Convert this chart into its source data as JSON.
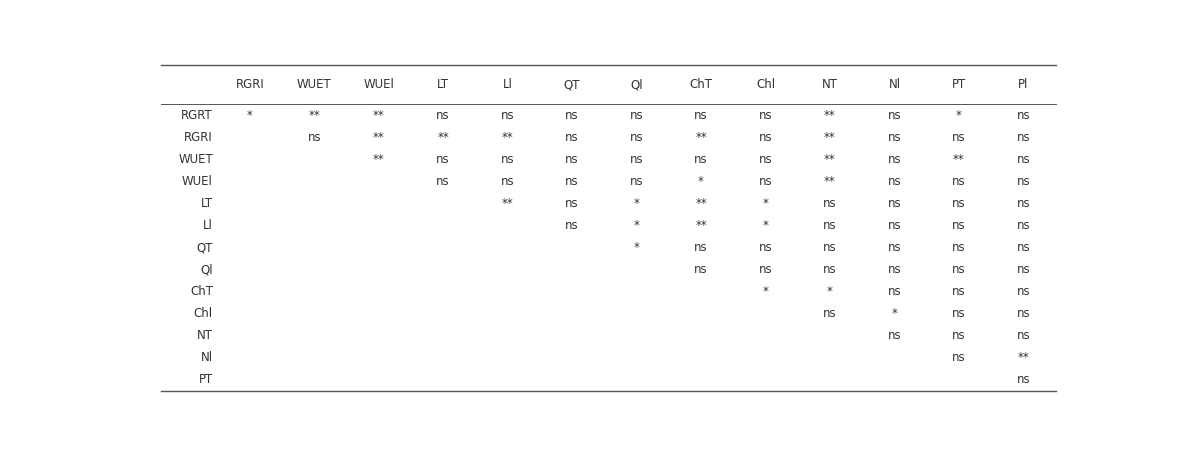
{
  "col_headers": [
    "",
    "RGRI",
    "WUET",
    "WUEl",
    "LT",
    "Ll",
    "QT",
    "Ql",
    "ChT",
    "Chl",
    "NT",
    "Nl",
    "PT",
    "Pl"
  ],
  "row_headers": [
    "RGRT",
    "RGRI",
    "WUET",
    "WUEl",
    "LT",
    "Ll",
    "QT",
    "Ql",
    "ChT",
    "Chl",
    "NT",
    "Nl",
    "PT"
  ],
  "table_data": [
    [
      "RGRT",
      "*",
      "**",
      "**",
      "ns",
      "ns",
      "ns",
      "ns",
      "ns",
      "ns",
      "**",
      "ns",
      "*",
      "ns"
    ],
    [
      "RGRI",
      "",
      "ns",
      "**",
      "**",
      "**",
      "ns",
      "ns",
      "**",
      "ns",
      "**",
      "ns",
      "ns",
      "ns"
    ],
    [
      "WUET",
      "",
      "",
      "**",
      "ns",
      "ns",
      "ns",
      "ns",
      "ns",
      "ns",
      "**",
      "ns",
      "**",
      "ns"
    ],
    [
      "WUEl",
      "",
      "",
      "",
      "ns",
      "ns",
      "ns",
      "ns",
      "*",
      "ns",
      "**",
      "ns",
      "ns",
      "ns"
    ],
    [
      "LT",
      "",
      "",
      "",
      "",
      "**",
      "ns",
      "*",
      "**",
      "*",
      "ns",
      "ns",
      "ns",
      "ns"
    ],
    [
      "Ll",
      "",
      "",
      "",
      "",
      "",
      "ns",
      "*",
      "**",
      "*",
      "ns",
      "ns",
      "ns",
      "ns"
    ],
    [
      "QT",
      "",
      "",
      "",
      "",
      "",
      "",
      "*",
      "ns",
      "ns",
      "ns",
      "ns",
      "ns",
      "ns"
    ],
    [
      "Ql",
      "",
      "",
      "",
      "",
      "",
      "",
      "",
      "ns",
      "ns",
      "ns",
      "ns",
      "ns",
      "ns"
    ],
    [
      "ChT",
      "",
      "",
      "",
      "",
      "",
      "",
      "",
      "",
      "*",
      "*",
      "ns",
      "ns",
      "ns"
    ],
    [
      "Chl",
      "",
      "",
      "",
      "",
      "",
      "",
      "",
      "",
      "",
      "ns",
      "*",
      "ns",
      "ns"
    ],
    [
      "NT",
      "",
      "",
      "",
      "",
      "",
      "",
      "",
      "",
      "",
      "",
      "ns",
      "ns",
      "ns"
    ],
    [
      "Nl",
      "",
      "",
      "",
      "",
      "",
      "",
      "",
      "",
      "",
      "",
      "",
      "ns",
      "**"
    ],
    [
      "PT",
      "",
      "",
      "",
      "",
      "",
      "",
      "",
      "",
      "",
      "",
      "",
      "",
      "ns"
    ]
  ],
  "font_size": 8.5,
  "background_color": "#ffffff",
  "text_color": "#333333",
  "line_color": "#555555"
}
